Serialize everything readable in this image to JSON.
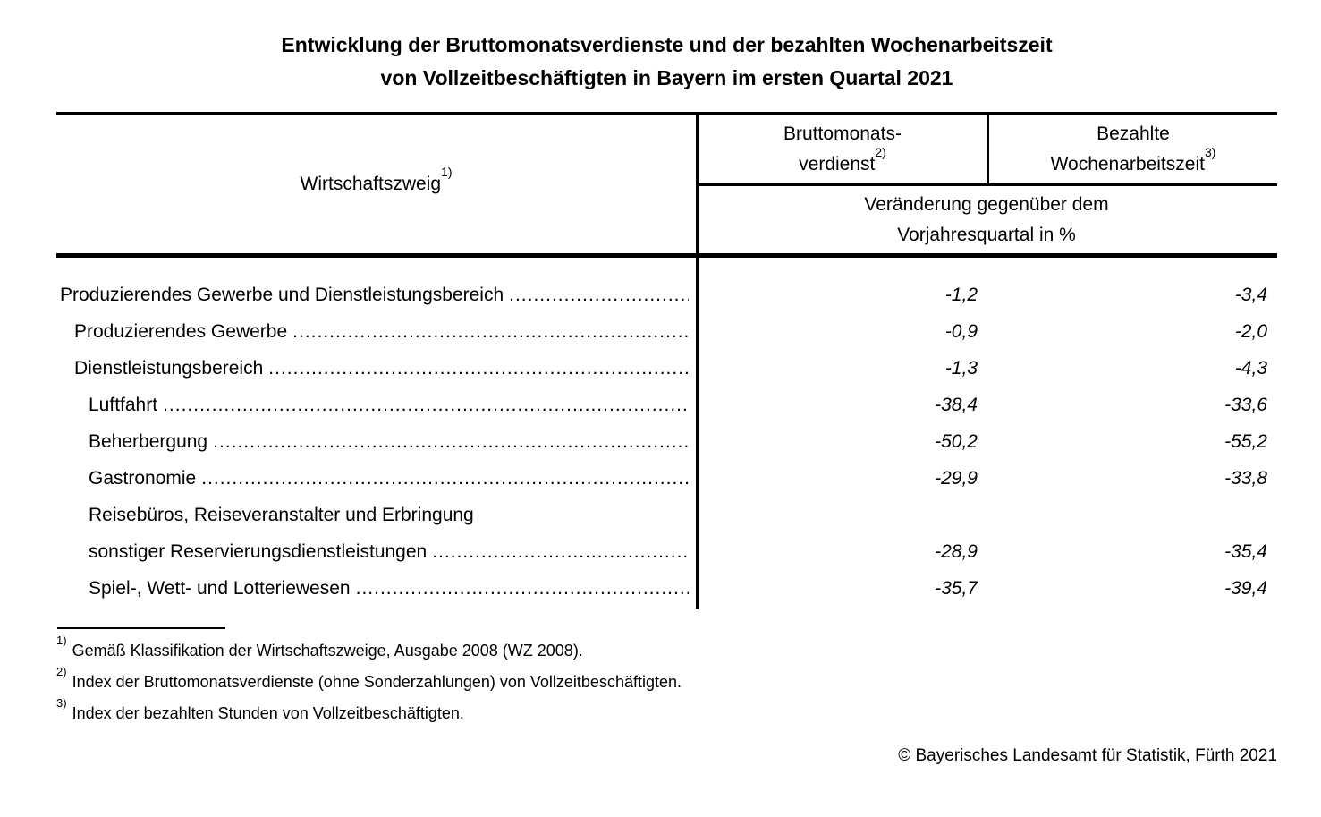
{
  "title": {
    "line1": "Entwicklung der Bruttomonatsverdienste und der bezahlten Wochenarbeitszeit",
    "line2": "von Vollzeitbeschäftigten in Bayern im ersten Quartal 2021"
  },
  "table": {
    "col_economic_branch": {
      "label": "Wirtschaftszweig",
      "footnote_ref": "1)"
    },
    "col_gross_earnings": {
      "line1": "Bruttomonats-",
      "line2": "verdienst",
      "footnote_ref": "2)"
    },
    "col_weekly_hours": {
      "line1": "Bezahlte",
      "line2": "Wochenarbeitszeit",
      "footnote_ref": "3)"
    },
    "subheader": {
      "line1": "Veränderung gegenüber dem",
      "line2": "Vorjahresquartal in %"
    },
    "rows": [
      {
        "label": "Produzierendes Gewerbe und Dienstleistungsbereich",
        "indent": 0,
        "leader": true,
        "verdienst": "-1,2",
        "arbeitszeit": "-3,4"
      },
      {
        "label": "Produzierendes Gewerbe",
        "indent": 1,
        "leader": true,
        "verdienst": "-0,9",
        "arbeitszeit": "-2,0"
      },
      {
        "label": "Dienstleistungsbereich",
        "indent": 1,
        "leader": true,
        "verdienst": "-1,3",
        "arbeitszeit": "-4,3"
      },
      {
        "label": "Luftfahrt",
        "indent": 2,
        "leader": true,
        "verdienst": "-38,4",
        "arbeitszeit": "-33,6"
      },
      {
        "label": "Beherbergung",
        "indent": 2,
        "leader": true,
        "verdienst": "-50,2",
        "arbeitszeit": "-55,2"
      },
      {
        "label": "Gastronomie",
        "indent": 2,
        "leader": true,
        "verdienst": "-29,9",
        "arbeitszeit": "-33,8"
      },
      {
        "label": "Reisebüros, Reiseveranstalter und Erbringung",
        "indent": 2,
        "leader": false,
        "verdienst": "",
        "arbeitszeit": ""
      },
      {
        "label": "sonstiger Reservierungsdienstleistungen",
        "indent": 2,
        "leader": true,
        "verdienst": "-28,9",
        "arbeitszeit": "-35,4"
      },
      {
        "label": "Spiel-, Wett- und Lotteriewesen",
        "indent": 2,
        "leader": true,
        "verdienst": "-35,7",
        "arbeitszeit": "-39,4"
      }
    ]
  },
  "footnotes": [
    {
      "ref": "1)",
      "text": "Gemäß Klassifikation der Wirtschaftszweige, Ausgabe 2008 (WZ 2008)."
    },
    {
      "ref": "2)",
      "text": "Index der Bruttomonatsverdienste (ohne Sonderzahlungen) von Vollzeitbeschäftigten."
    },
    {
      "ref": "3)",
      "text": "Index der bezahlten Stunden von Vollzeitbeschäftigten."
    }
  ],
  "footer": {
    "copyright": "© Bayerisches Landesamt für Statistik, Fürth 2021"
  },
  "colors": {
    "text": "#000000",
    "background": "#ffffff",
    "rule": "#000000"
  }
}
